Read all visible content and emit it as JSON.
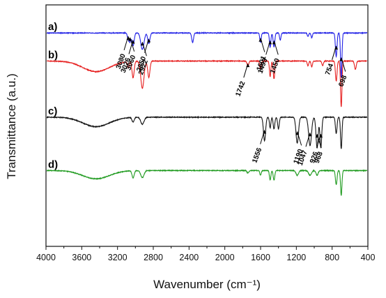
{
  "chart_data": {
    "type": "line",
    "xlabel": "Wavenumber (cm⁻¹)",
    "ylabel": "Transmittance (a.u.)",
    "xlim": [
      4000,
      400
    ],
    "x_reversed": true,
    "x_ticks": [
      4000,
      3600,
      3200,
      2800,
      2400,
      2000,
      1600,
      1200,
      800,
      400
    ],
    "y_ticks_shown": false,
    "grid": false,
    "legend": "none",
    "series": [
      {
        "name": "a)",
        "color": "#1f1fe6",
        "baseline": 0.5,
        "bands": [
          {
            "center": 3080,
            "depth": 0.25,
            "width": 10
          },
          {
            "center": 3060,
            "depth": 0.35,
            "width": 10
          },
          {
            "center": 3026,
            "depth": 0.55,
            "width": 12
          },
          {
            "center": 2922,
            "depth": 0.7,
            "width": 18
          },
          {
            "center": 2850,
            "depth": 0.45,
            "width": 12
          },
          {
            "center": 2360,
            "depth": 0.4,
            "width": 10
          },
          {
            "center": 1601,
            "depth": 0.4,
            "width": 8
          },
          {
            "center": 1493,
            "depth": 0.6,
            "width": 8
          },
          {
            "center": 1450,
            "depth": 0.6,
            "width": 9
          },
          {
            "center": 1380,
            "depth": 0.3,
            "width": 8
          },
          {
            "center": 1070,
            "depth": 0.15,
            "width": 8
          },
          {
            "center": 1028,
            "depth": 0.2,
            "width": 8
          },
          {
            "center": 754,
            "depth": 1.0,
            "width": 9
          },
          {
            "center": 698,
            "depth": 1.9,
            "width": 8
          }
        ],
        "annotations": [
          "3080",
          "3060",
          "3026",
          "2922",
          "2850",
          "1601",
          "1493",
          "1450",
          "754",
          "698"
        ]
      },
      {
        "name": "b)",
        "color": "#e61e1e",
        "baseline": 0.0,
        "bands": [
          {
            "center": 3440,
            "depth": 0.45,
            "width": 150
          },
          {
            "center": 3080,
            "depth": 0.25,
            "width": 10
          },
          {
            "center": 3026,
            "depth": 0.7,
            "width": 12
          },
          {
            "center": 2922,
            "depth": 1.15,
            "width": 18
          },
          {
            "center": 2850,
            "depth": 0.7,
            "width": 12
          },
          {
            "center": 1742,
            "depth": 0.2,
            "width": 10
          },
          {
            "center": 1601,
            "depth": 0.35,
            "width": 8
          },
          {
            "center": 1493,
            "depth": 0.65,
            "width": 8
          },
          {
            "center": 1450,
            "depth": 0.75,
            "width": 9
          },
          {
            "center": 1070,
            "depth": 0.2,
            "width": 8
          },
          {
            "center": 1028,
            "depth": 0.25,
            "width": 8
          },
          {
            "center": 906,
            "depth": 0.2,
            "width": 8
          },
          {
            "center": 754,
            "depth": 0.85,
            "width": 9
          },
          {
            "center": 698,
            "depth": 1.95,
            "width": 8
          },
          {
            "center": 540,
            "depth": 0.35,
            "width": 10
          }
        ],
        "annotations": [
          "1742"
        ]
      },
      {
        "name": "c)",
        "color": "#111111",
        "baseline": -1.0,
        "bands": [
          {
            "center": 3440,
            "depth": 0.4,
            "width": 150
          },
          {
            "center": 3026,
            "depth": 0.2,
            "width": 12
          },
          {
            "center": 2922,
            "depth": 0.3,
            "width": 18
          },
          {
            "center": 1556,
            "depth": 1.0,
            "width": 12
          },
          {
            "center": 1493,
            "depth": 0.45,
            "width": 8
          },
          {
            "center": 1450,
            "depth": 0.5,
            "width": 9
          },
          {
            "center": 1400,
            "depth": 0.5,
            "width": 9
          },
          {
            "center": 1190,
            "depth": 1.1,
            "width": 14
          },
          {
            "center": 1047,
            "depth": 1.2,
            "width": 16
          },
          {
            "center": 968,
            "depth": 1.3,
            "width": 12
          },
          {
            "center": 926,
            "depth": 1.3,
            "width": 10
          },
          {
            "center": 754,
            "depth": 0.7,
            "width": 9
          },
          {
            "center": 698,
            "depth": 1.35,
            "width": 8
          }
        ],
        "annotations": [
          "1556",
          "1190",
          "1047",
          "968",
          "926"
        ]
      },
      {
        "name": "d)",
        "color": "#1e9a1e",
        "baseline": -1.95,
        "bands": [
          {
            "center": 3440,
            "depth": 0.35,
            "width": 150
          },
          {
            "center": 3026,
            "depth": 0.3,
            "width": 12
          },
          {
            "center": 2922,
            "depth": 0.3,
            "width": 18
          },
          {
            "center": 1742,
            "depth": 0.1,
            "width": 10
          },
          {
            "center": 1601,
            "depth": 0.2,
            "width": 8
          },
          {
            "center": 1493,
            "depth": 0.4,
            "width": 8
          },
          {
            "center": 1450,
            "depth": 0.4,
            "width": 9
          },
          {
            "center": 1190,
            "depth": 0.2,
            "width": 14
          },
          {
            "center": 1047,
            "depth": 0.2,
            "width": 16
          },
          {
            "center": 968,
            "depth": 0.2,
            "width": 12
          },
          {
            "center": 754,
            "depth": 0.6,
            "width": 9
          },
          {
            "center": 698,
            "depth": 1.05,
            "width": 8
          }
        ],
        "annotations": []
      }
    ]
  }
}
